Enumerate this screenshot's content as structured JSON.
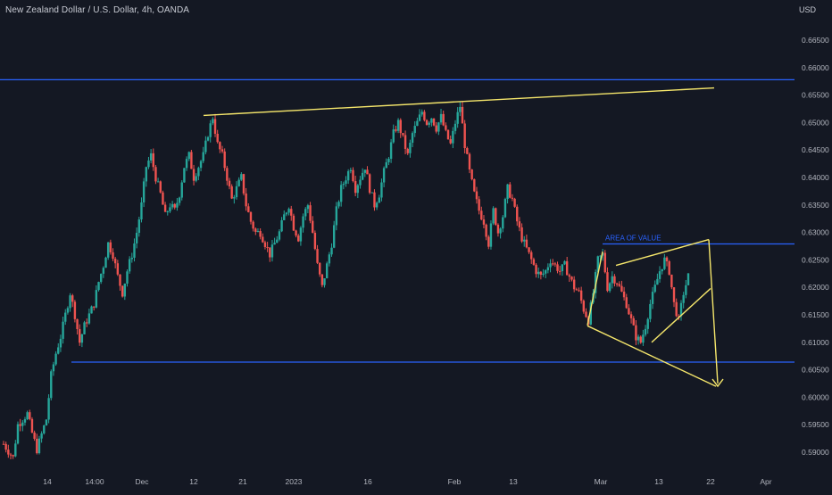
{
  "header": {
    "symbol_title": "New Zealand Dollar / U.S. Dollar, 4h, OANDA",
    "currency": "USD"
  },
  "chart_data": {
    "type": "candlestick",
    "title": "New Zealand Dollar / U.S. Dollar, 4h, OANDA",
    "ylabel": "USD",
    "ylim": [
      0.588,
      0.668
    ],
    "y_ticks": [
      "0.66500",
      "0.66000",
      "0.65500",
      "0.65000",
      "0.64500",
      "0.64000",
      "0.63500",
      "0.63000",
      "0.62500",
      "0.62000",
      "0.61500",
      "0.61000",
      "0.60500",
      "0.60000",
      "0.59500",
      "0.59000"
    ],
    "x_ticks": [
      "14",
      "14:00",
      "Dec",
      "12",
      "21",
      "2023",
      "16",
      "Feb",
      "13",
      "Mar",
      "13",
      "22",
      "Apr"
    ],
    "grid": false,
    "colors": {
      "background": "#141823",
      "up": "#26a69a",
      "down": "#ef5350",
      "hline": "#2962ff",
      "trend": "#f5e66b",
      "axis_text": "#b2b5be",
      "annotation_text": "#2962ff"
    },
    "price_path": [
      [
        0,
        0.5915
      ],
      [
        2,
        0.589
      ],
      [
        3,
        0.595
      ],
      [
        4,
        0.596
      ],
      [
        5,
        0.597
      ],
      [
        6,
        0.5935
      ],
      [
        7,
        0.5905
      ],
      [
        9,
        0.596
      ],
      [
        10,
        0.604
      ],
      [
        11,
        0.608
      ],
      [
        12,
        0.611
      ],
      [
        13,
        0.615
      ],
      [
        14,
        0.619
      ],
      [
        15,
        0.615
      ],
      [
        16,
        0.61
      ],
      [
        17,
        0.613
      ],
      [
        18,
        0.615
      ],
      [
        19,
        0.617
      ],
      [
        20,
        0.621
      ],
      [
        21,
        0.624
      ],
      [
        22,
        0.628
      ],
      [
        23,
        0.626
      ],
      [
        24,
        0.622
      ],
      [
        25,
        0.619
      ],
      [
        26,
        0.623
      ],
      [
        27,
        0.626
      ],
      [
        28,
        0.63
      ],
      [
        29,
        0.635
      ],
      [
        30,
        0.642
      ],
      [
        31,
        0.644
      ],
      [
        32,
        0.64
      ],
      [
        33,
        0.637
      ],
      [
        34,
        0.633
      ],
      [
        35,
        0.635
      ],
      [
        36,
        0.634
      ],
      [
        37,
        0.637
      ],
      [
        38,
        0.642
      ],
      [
        39,
        0.644
      ],
      [
        40,
        0.64
      ],
      [
        41,
        0.642
      ],
      [
        42,
        0.644
      ],
      [
        43,
        0.648
      ],
      [
        44,
        0.651
      ],
      [
        45,
        0.646
      ],
      [
        46,
        0.644
      ],
      [
        47,
        0.64
      ],
      [
        48,
        0.636
      ],
      [
        49,
        0.638
      ],
      [
        50,
        0.64
      ],
      [
        51,
        0.635
      ],
      [
        52,
        0.632
      ],
      [
        53,
        0.63
      ],
      [
        54,
        0.63
      ],
      [
        55,
        0.628
      ],
      [
        56,
        0.626
      ],
      [
        57,
        0.628
      ],
      [
        58,
        0.63
      ],
      [
        59,
        0.633
      ],
      [
        60,
        0.635
      ],
      [
        61,
        0.631
      ],
      [
        62,
        0.629
      ],
      [
        63,
        0.633
      ],
      [
        64,
        0.635
      ],
      [
        65,
        0.63
      ],
      [
        66,
        0.624
      ],
      [
        67,
        0.62
      ],
      [
        68,
        0.624
      ],
      [
        69,
        0.628
      ],
      [
        70,
        0.634
      ],
      [
        71,
        0.638
      ],
      [
        72,
        0.64
      ],
      [
        73,
        0.642
      ],
      [
        74,
        0.638
      ],
      [
        75,
        0.64
      ],
      [
        76,
        0.642
      ],
      [
        77,
        0.638
      ],
      [
        78,
        0.635
      ],
      [
        79,
        0.637
      ],
      [
        80,
        0.641
      ],
      [
        81,
        0.644
      ],
      [
        82,
        0.648
      ],
      [
        83,
        0.65
      ],
      [
        84,
        0.647
      ],
      [
        85,
        0.644
      ],
      [
        86,
        0.648
      ],
      [
        87,
        0.65
      ],
      [
        88,
        0.652
      ],
      [
        89,
        0.65
      ],
      [
        90,
        0.651
      ],
      [
        91,
        0.649
      ],
      [
        92,
        0.651
      ],
      [
        93,
        0.648
      ],
      [
        94,
        0.646
      ],
      [
        95,
        0.65
      ],
      [
        96,
        0.653
      ],
      [
        97,
        0.646
      ],
      [
        98,
        0.641
      ],
      [
        99,
        0.637
      ],
      [
        100,
        0.634
      ],
      [
        101,
        0.632
      ],
      [
        102,
        0.628
      ],
      [
        103,
        0.634
      ],
      [
        104,
        0.63
      ],
      [
        105,
        0.633
      ],
      [
        106,
        0.638
      ],
      [
        107,
        0.636
      ],
      [
        108,
        0.632
      ],
      [
        109,
        0.629
      ],
      [
        110,
        0.627
      ],
      [
        111,
        0.625
      ],
      [
        112,
        0.623
      ],
      [
        113,
        0.622
      ],
      [
        114,
        0.623
      ],
      [
        115,
        0.625
      ],
      [
        116,
        0.624
      ],
      [
        117,
        0.623
      ],
      [
        118,
        0.624
      ],
      [
        119,
        0.622
      ],
      [
        120,
        0.62
      ],
      [
        121,
        0.619
      ],
      [
        122,
        0.616
      ],
      [
        123,
        0.614
      ],
      [
        124,
        0.619
      ],
      [
        125,
        0.625
      ],
      [
        126,
        0.626
      ],
      [
        127,
        0.62
      ],
      [
        128,
        0.622
      ],
      [
        129,
        0.621
      ],
      [
        130,
        0.619
      ],
      [
        131,
        0.617
      ],
      [
        132,
        0.614
      ],
      [
        133,
        0.611
      ],
      [
        134,
        0.61
      ],
      [
        135,
        0.613
      ],
      [
        136,
        0.617
      ],
      [
        137,
        0.62
      ],
      [
        138,
        0.623
      ],
      [
        139,
        0.625
      ],
      [
        140,
        0.623
      ],
      [
        141,
        0.617
      ],
      [
        142,
        0.614
      ],
      [
        143,
        0.619
      ],
      [
        144,
        0.622
      ]
    ],
    "horizontal_lines": [
      {
        "name": "resistance",
        "y": 0.6578
      },
      {
        "name": "area-of-value",
        "y": 0.6279
      },
      {
        "name": "support",
        "y": 0.6064
      }
    ],
    "trend_lines": [
      {
        "name": "upper-trendline",
        "from": [
          "Dec 12",
          0.6513
        ],
        "to": [
          "Mar 22",
          0.6563
        ]
      },
      {
        "name": "wedge-upper",
        "from": [
          "Mar 1",
          0.624
        ],
        "to": [
          "Mar 22",
          0.6287
        ]
      },
      {
        "name": "wedge-lower",
        "from": [
          "Feb 27",
          0.6131
        ],
        "to": [
          "Mar 22",
          0.6198
        ]
      },
      {
        "name": "wedge-lower-2",
        "from": [
          "Mar 13",
          0.6101
        ],
        "to": [
          "Mar 22",
          0.6198
        ]
      }
    ],
    "annotations": [
      {
        "name": "area-of-value-label",
        "text": "AREA OF VALUE"
      }
    ]
  }
}
